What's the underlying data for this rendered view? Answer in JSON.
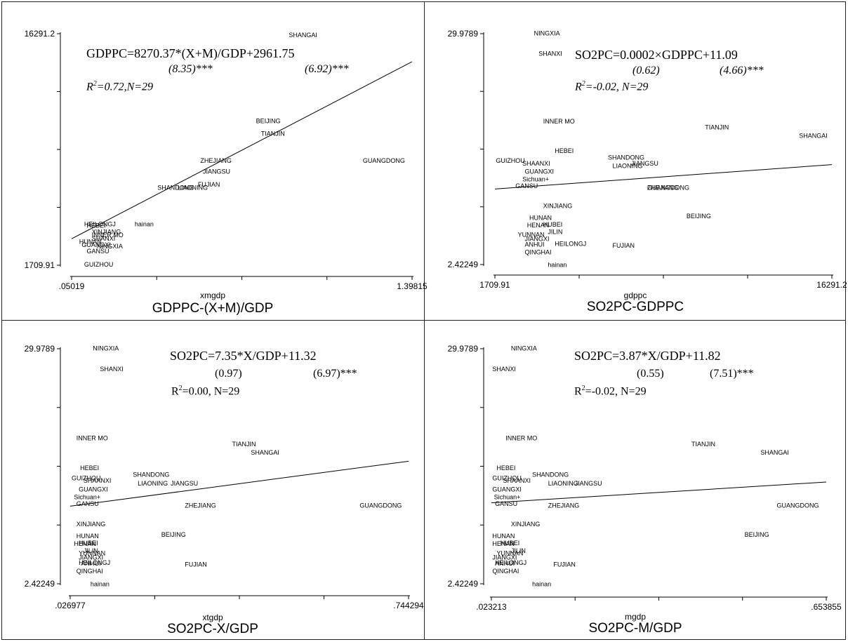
{
  "chart_data": [
    {
      "type": "scatter",
      "title": "GDPPC-(X+M)/GDP",
      "xlabel": "xmgdp",
      "xlim": [
        0.05019,
        1.39815
      ],
      "ylim": [
        1709.91,
        16291.2
      ],
      "x_ticks": [
        ".05019",
        "1.39815"
      ],
      "y_ticks": [
        "1709.91",
        "16291.2"
      ],
      "equation": "GDPPC=8270.37*(X+M)/GDP+2961.75",
      "t_values": [
        "(8.35)***",
        "(6.92)***"
      ],
      "r2_base": "R",
      "r2_rest": "=0.72,N=29",
      "fit": {
        "intercept": 2961.75,
        "slope": 8270.37
      },
      "points": [
        {
          "label": "SHANGAI",
          "x": 0.91,
          "y": 16200
        },
        {
          "label": "BEIJING",
          "x": 0.78,
          "y": 10800
        },
        {
          "label": "TIANJIN",
          "x": 0.8,
          "y": 10000
        },
        {
          "label": "ZHEJIANG",
          "x": 0.56,
          "y": 8300
        },
        {
          "label": "GUANGDONG",
          "x": 1.37,
          "y": 8300
        },
        {
          "label": "JIANGSU",
          "x": 0.57,
          "y": 7600
        },
        {
          "label": "FUJIAN",
          "x": 0.55,
          "y": 6800
        },
        {
          "label": "LIAONING",
          "x": 0.47,
          "y": 6600
        },
        {
          "label": "SHANDONG",
          "x": 0.39,
          "y": 6600
        },
        {
          "label": "hainan",
          "x": 0.3,
          "y": 4300
        },
        {
          "label": "HEILONGJ",
          "x": 0.1,
          "y": 4300
        },
        {
          "label": "HEBEI",
          "x": 0.11,
          "y": 4200
        },
        {
          "label": "XINJIANG",
          "x": 0.13,
          "y": 3800
        },
        {
          "label": "INNER MO",
          "x": 0.13,
          "y": 3600
        },
        {
          "label": "SHANXI",
          "x": 0.13,
          "y": 3400
        },
        {
          "label": "NINGXIA",
          "x": 0.15,
          "y": 2900
        },
        {
          "label": "GUANGXI",
          "x": 0.09,
          "y": 3000
        },
        {
          "label": "HUNAN",
          "x": 0.08,
          "y": 3200
        },
        {
          "label": "GANSU",
          "x": 0.11,
          "y": 2600
        },
        {
          "label": "GUIZHOU",
          "x": 0.1,
          "y": 1750
        }
      ]
    },
    {
      "type": "scatter",
      "title": "SO2PC-GDPPC",
      "xlabel": "gdppc",
      "xlim": [
        1709.91,
        16291.2
      ],
      "ylim": [
        2.42249,
        29.9789
      ],
      "x_ticks": [
        "1709.91",
        "16291.2"
      ],
      "y_ticks": [
        "2.42249",
        "29.9789"
      ],
      "equation": "SO2PC=0.0002×GDPPC+11.09",
      "t_values": [
        "(0.62)",
        "(4.66)***"
      ],
      "r2_base": "R",
      "r2_rest": "=-0.02, N=29",
      "fit": {
        "intercept": 11.09,
        "slope": 0.0002
      },
      "points": [
        {
          "label": "NINGXIA",
          "x": 3400,
          "y": 30.0
        },
        {
          "label": "SHANXI",
          "x": 3600,
          "y": 27.6
        },
        {
          "label": "INNER MO",
          "x": 3800,
          "y": 19.5
        },
        {
          "label": "TIANJIN",
          "x": 10800,
          "y": 18.8
        },
        {
          "label": "SHANGAI",
          "x": 16100,
          "y": 17.8
        },
        {
          "label": "HEBEI",
          "x": 4300,
          "y": 16.0
        },
        {
          "label": "SHANDONG",
          "x": 6600,
          "y": 15.2
        },
        {
          "label": "LIAONING",
          "x": 6800,
          "y": 14.2
        },
        {
          "label": "JIANGSU",
          "x": 7600,
          "y": 14.5
        },
        {
          "label": "GUIZHOU",
          "x": 1750,
          "y": 14.8
        },
        {
          "label": "SHAANXI",
          "x": 2900,
          "y": 14.5
        },
        {
          "label": "GUANGXI",
          "x": 3000,
          "y": 13.5
        },
        {
          "label": "Sichuan+",
          "x": 2900,
          "y": 12.6
        },
        {
          "label": "GANSU",
          "x": 2600,
          "y": 11.8
        },
        {
          "label": "ZHEJIANG",
          "x": 8300,
          "y": 11.6
        },
        {
          "label": "GUANGDONG",
          "x": 8300,
          "y": 11.6
        },
        {
          "label": "XINJIANG",
          "x": 3800,
          "y": 9.4
        },
        {
          "label": "BEIJING",
          "x": 10000,
          "y": 8.2
        },
        {
          "label": "HUNAN",
          "x": 3200,
          "y": 8.0
        },
        {
          "label": "HENAN",
          "x": 3100,
          "y": 7.1
        },
        {
          "label": "HUBEI",
          "x": 3800,
          "y": 7.2
        },
        {
          "label": "YUNNAN",
          "x": 2700,
          "y": 6.0
        },
        {
          "label": "JILIN",
          "x": 4000,
          "y": 6.3
        },
        {
          "label": "JIANGXI",
          "x": 3000,
          "y": 5.5
        },
        {
          "label": "ANHUI",
          "x": 3000,
          "y": 4.8
        },
        {
          "label": "HEILONGJ",
          "x": 4300,
          "y": 4.9
        },
        {
          "label": "FUJIAN",
          "x": 6800,
          "y": 4.7
        },
        {
          "label": "QINGHAI",
          "x": 3000,
          "y": 3.9
        },
        {
          "label": "hainan",
          "x": 4000,
          "y": 2.4
        }
      ]
    },
    {
      "type": "scatter",
      "title": "SO2PC-X/GDP",
      "xlabel": "xtgdp",
      "xlim": [
        0.026977,
        0.744294
      ],
      "ylim": [
        2.42249,
        29.9789
      ],
      "x_ticks": [
        ".026977",
        ".744294"
      ],
      "y_ticks": [
        "2.42249",
        "29.9789"
      ],
      "equation": "SO2PC=7.35*X/GDP+11.32",
      "t_values": [
        "(0.97)",
        "(6.97)***"
      ],
      "r2_base": "R",
      "r2_rest": "=0.00, N=29",
      "fit": {
        "intercept": 11.32,
        "slope": 7.35
      },
      "points": [
        {
          "label": "NINGXIA",
          "x": 0.075,
          "y": 30.0
        },
        {
          "label": "SHANXI",
          "x": 0.09,
          "y": 27.6
        },
        {
          "label": "INNER MO",
          "x": 0.04,
          "y": 19.5
        },
        {
          "label": "TIANJIN",
          "x": 0.37,
          "y": 18.8
        },
        {
          "label": "SHANGAI",
          "x": 0.41,
          "y": 17.8
        },
        {
          "label": "HEBEI",
          "x": 0.048,
          "y": 16.0
        },
        {
          "label": "SHANDONG",
          "x": 0.16,
          "y": 15.2
        },
        {
          "label": "GUIZHOU",
          "x": 0.03,
          "y": 14.8
        },
        {
          "label": "SHAANXI",
          "x": 0.055,
          "y": 14.5
        },
        {
          "label": "LIAONING",
          "x": 0.17,
          "y": 14.2
        },
        {
          "label": "JIANGSU",
          "x": 0.24,
          "y": 14.2
        },
        {
          "label": "GUANGXI",
          "x": 0.045,
          "y": 13.5
        },
        {
          "label": "Sichuan+",
          "x": 0.035,
          "y": 12.6
        },
        {
          "label": "GANSU",
          "x": 0.04,
          "y": 11.8
        },
        {
          "label": "ZHEJIANG",
          "x": 0.27,
          "y": 11.6
        },
        {
          "label": "GUANGDONG",
          "x": 0.73,
          "y": 11.6
        },
        {
          "label": "XINJIANG",
          "x": 0.04,
          "y": 9.4
        },
        {
          "label": "BEIJING",
          "x": 0.22,
          "y": 8.2
        },
        {
          "label": "HUNAN",
          "x": 0.04,
          "y": 8.0
        },
        {
          "label": "HUBEI",
          "x": 0.045,
          "y": 7.2
        },
        {
          "label": "HENAN",
          "x": 0.035,
          "y": 7.1
        },
        {
          "label": "YUNNAN",
          "x": 0.045,
          "y": 6.0
        },
        {
          "label": "JILIN",
          "x": 0.055,
          "y": 6.3
        },
        {
          "label": "JIANGXI",
          "x": 0.045,
          "y": 5.5
        },
        {
          "label": "HEILONGJ",
          "x": 0.045,
          "y": 4.9
        },
        {
          "label": "ANHUI",
          "x": 0.05,
          "y": 4.8
        },
        {
          "label": "FUJIAN",
          "x": 0.27,
          "y": 4.7
        },
        {
          "label": "QINGHAI",
          "x": 0.04,
          "y": 3.9
        },
        {
          "label": "hainan",
          "x": 0.07,
          "y": 2.4
        }
      ]
    },
    {
      "type": "scatter",
      "title": "SO2PC-M/GDP",
      "xlabel": "mgdp",
      "xlim": [
        0.023213,
        0.653855
      ],
      "ylim": [
        2.42249,
        29.9789
      ],
      "x_ticks": [
        ".023213",
        ".653855"
      ],
      "y_ticks": [
        "2.42249",
        "29.9789"
      ],
      "equation": "SO2PC=3.87*X/GDP+11.82",
      "t_values": [
        "(0.55)",
        "(7.51)***"
      ],
      "r2_base": "R",
      "r2_rest": "=-0.02, N=29",
      "fit": {
        "intercept": 11.82,
        "slope": 3.87
      },
      "points": [
        {
          "label": "NINGXIA",
          "x": 0.06,
          "y": 30.0
        },
        {
          "label": "SHANXI",
          "x": 0.025,
          "y": 27.6
        },
        {
          "label": "INNER MO",
          "x": 0.05,
          "y": 19.5
        },
        {
          "label": "TIANJIN",
          "x": 0.4,
          "y": 18.8
        },
        {
          "label": "SHANGAI",
          "x": 0.53,
          "y": 17.8
        },
        {
          "label": "HEBEI",
          "x": 0.033,
          "y": 16.0
        },
        {
          "label": "SHANDONG",
          "x": 0.1,
          "y": 15.2
        },
        {
          "label": "GUIZHOU",
          "x": 0.025,
          "y": 14.8
        },
        {
          "label": "SHAANXI",
          "x": 0.045,
          "y": 14.5
        },
        {
          "label": "LIAONING",
          "x": 0.13,
          "y": 14.2
        },
        {
          "label": "JIANGSU",
          "x": 0.18,
          "y": 14.2
        },
        {
          "label": "GUANGXI",
          "x": 0.025,
          "y": 13.5
        },
        {
          "label": "Sichuan+",
          "x": 0.028,
          "y": 12.6
        },
        {
          "label": "GANSU",
          "x": 0.03,
          "y": 11.8
        },
        {
          "label": "ZHEJIANG",
          "x": 0.13,
          "y": 11.6
        },
        {
          "label": "GUANGDONG",
          "x": 0.64,
          "y": 11.6
        },
        {
          "label": "XINJIANG",
          "x": 0.06,
          "y": 9.4
        },
        {
          "label": "BEIJING",
          "x": 0.5,
          "y": 8.2
        },
        {
          "label": "HUNAN",
          "x": 0.025,
          "y": 8.0
        },
        {
          "label": "HUBEI",
          "x": 0.04,
          "y": 7.2
        },
        {
          "label": "HENAN",
          "x": 0.025,
          "y": 7.1
        },
        {
          "label": "YUNNAN",
          "x": 0.033,
          "y": 6.0
        },
        {
          "label": "JILIN",
          "x": 0.06,
          "y": 6.3
        },
        {
          "label": "JIANGXI",
          "x": 0.025,
          "y": 5.5
        },
        {
          "label": "HEILONGJ",
          "x": 0.03,
          "y": 4.9
        },
        {
          "label": "ANHUI",
          "x": 0.03,
          "y": 4.8
        },
        {
          "label": "FUJIAN",
          "x": 0.14,
          "y": 4.7
        },
        {
          "label": "QINGHAI",
          "x": 0.025,
          "y": 3.9
        },
        {
          "label": "hainan",
          "x": 0.1,
          "y": 2.4
        }
      ]
    }
  ]
}
